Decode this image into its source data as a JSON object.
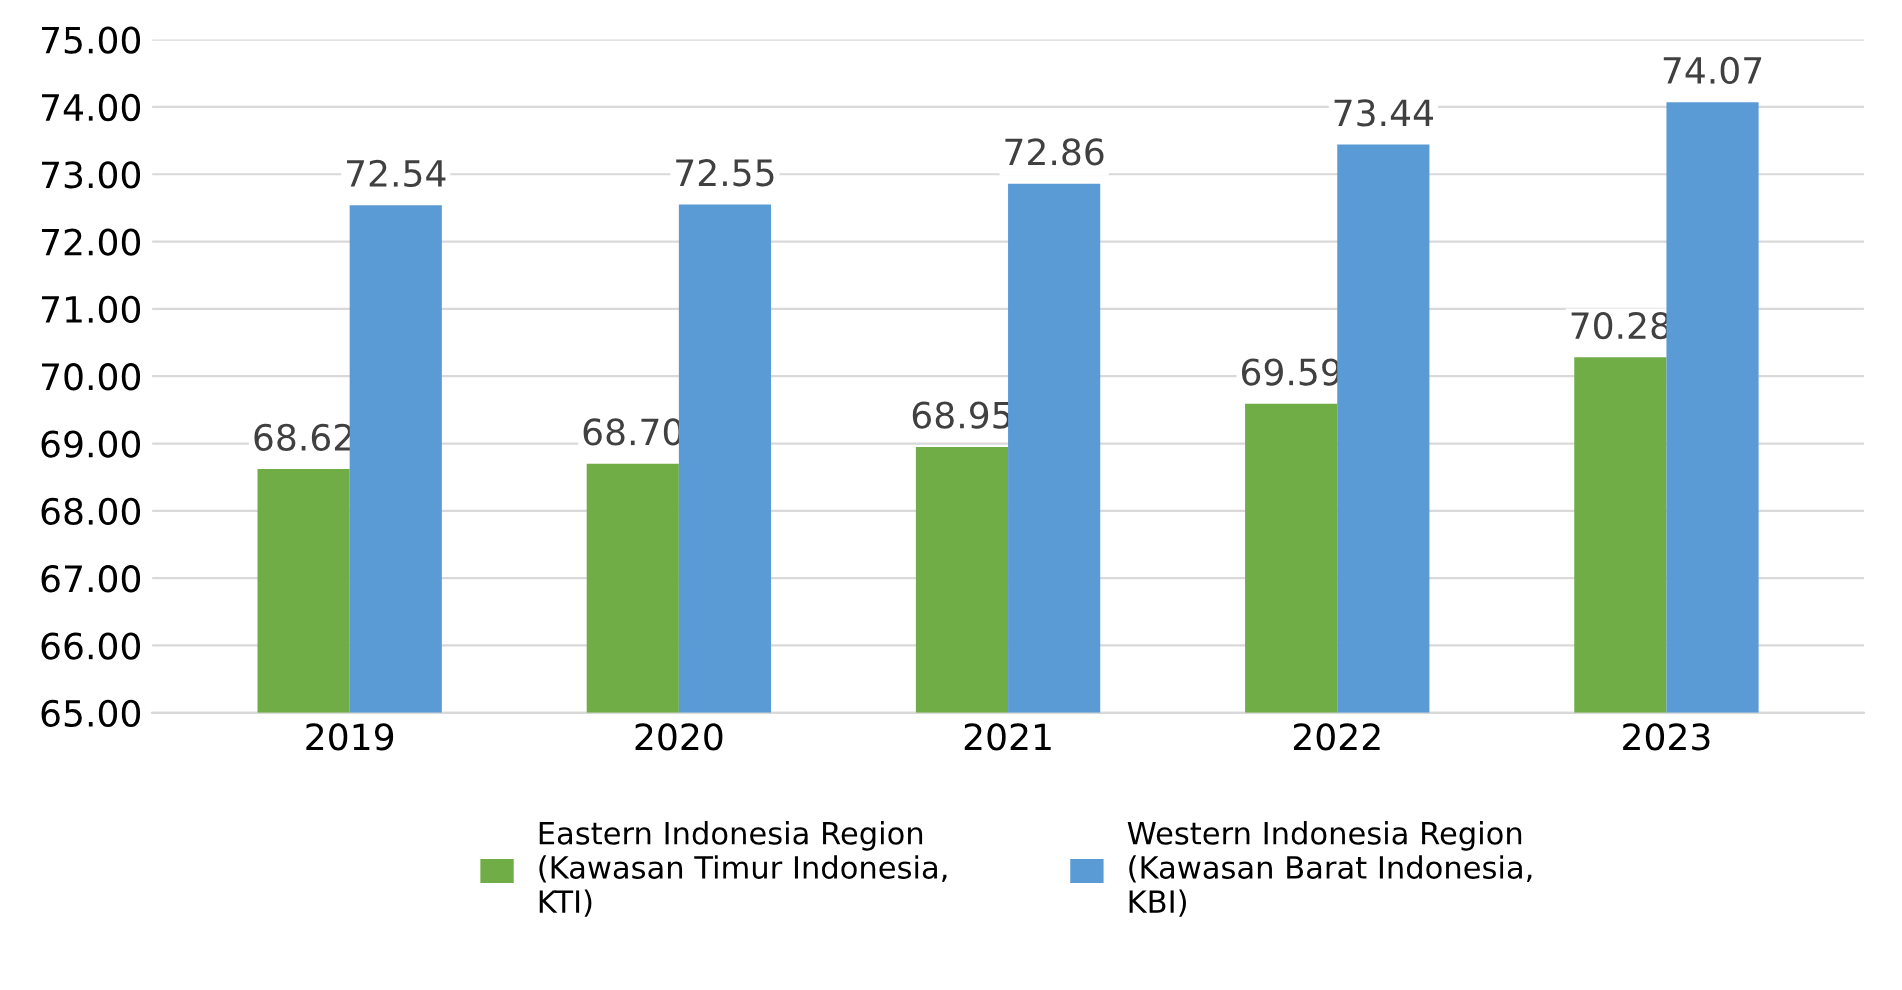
{
  "chart_data": {
    "type": "bar",
    "categories": [
      "2019",
      "2020",
      "2021",
      "2022",
      "2023"
    ],
    "series": [
      {
        "name": "Eastern Indonesia Region\n(Kawasan Timur Indonesia,\nKTI)",
        "color": "#70ad47",
        "values": [
          68.62,
          68.7,
          68.95,
          69.59,
          70.28
        ],
        "value_labels": [
          "68.62",
          "68.70",
          "68.95",
          "69.59",
          "70.28"
        ]
      },
      {
        "name": "Western Indonesia Region\n(Kawasan Barat Indonesia,\nKBI)",
        "color": "#5b9bd5",
        "values": [
          72.54,
          72.55,
          72.86,
          73.44,
          74.07
        ],
        "value_labels": [
          "72.54",
          "72.55",
          "72.86",
          "73.44",
          "74.07"
        ]
      }
    ],
    "ylim": [
      65,
      75
    ],
    "yticks": [
      {
        "value": 65,
        "label": "65.00"
      },
      {
        "value": 66,
        "label": "66.00"
      },
      {
        "value": 67,
        "label": "67.00"
      },
      {
        "value": 68,
        "label": "68.00"
      },
      {
        "value": 69,
        "label": "69.00"
      },
      {
        "value": 70,
        "label": "70.00"
      },
      {
        "value": 71,
        "label": "71.00"
      },
      {
        "value": 72,
        "label": "72.00"
      },
      {
        "value": 73,
        "label": "73.00"
      },
      {
        "value": 74,
        "label": "74.00"
      },
      {
        "value": 75,
        "label": "75.00"
      }
    ],
    "grid": "y",
    "legend": "bottom"
  }
}
